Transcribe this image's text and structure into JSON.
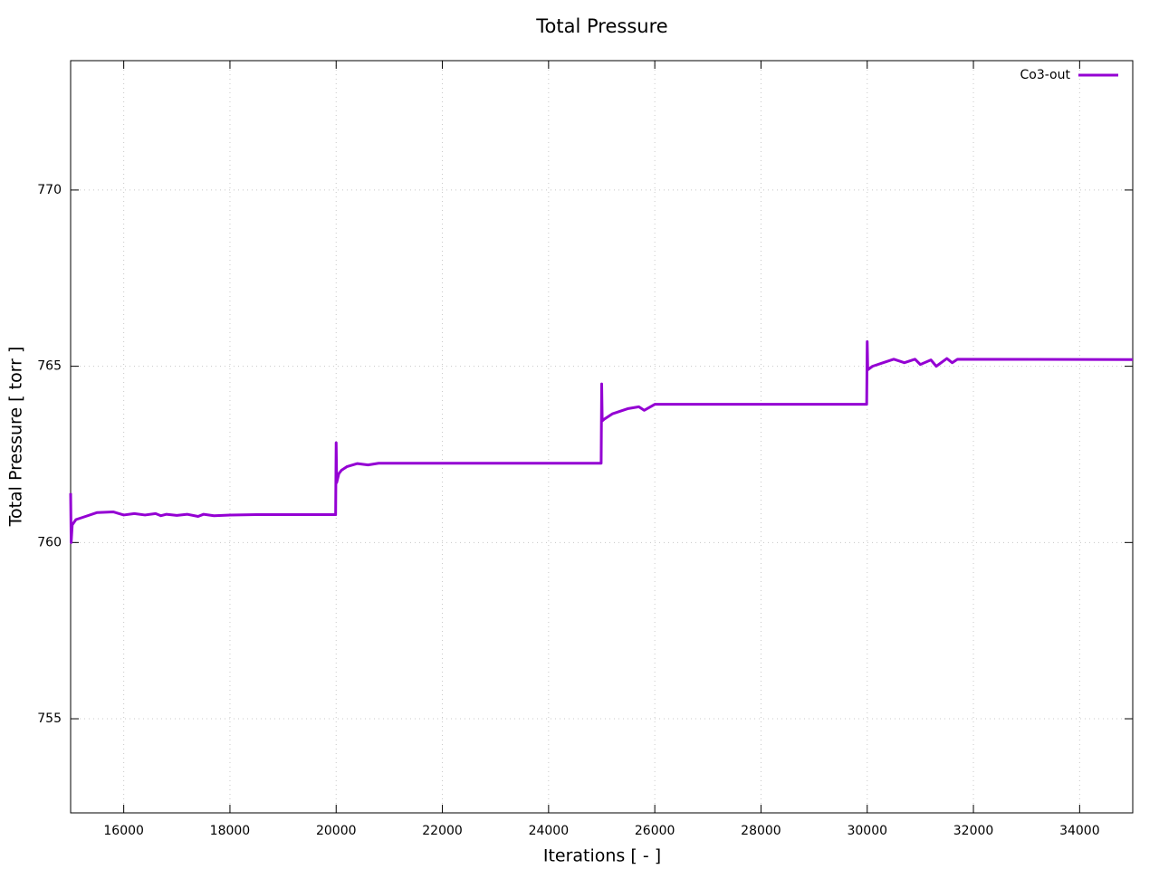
{
  "chart_data": {
    "type": "line",
    "title": "Total Pressure",
    "x_label": "Iterations [ - ]",
    "y_label": "Total Pressure [ torr ]",
    "x": [
      15000,
      15010,
      15030,
      15100,
      15300,
      15500,
      15800,
      16000,
      16200,
      16400,
      16600,
      16700,
      16800,
      17000,
      17200,
      17400,
      17500,
      17700,
      18000,
      18500,
      19990,
      20000,
      20010,
      20050,
      20100,
      20200,
      20400,
      20600,
      20800,
      24990,
      25000,
      25010,
      25050,
      25200,
      25500,
      25700,
      25800,
      26000,
      29990,
      30000,
      30010,
      30100,
      30300,
      30500,
      30700,
      30900,
      31000,
      31200,
      31300,
      31500,
      31600,
      31700,
      35000
    ],
    "series": [
      {
        "name": "Co3-out",
        "color": "#9400d3",
        "values": [
          761.4,
          760.0,
          760.5,
          760.65,
          760.75,
          760.85,
          760.87,
          760.78,
          760.82,
          760.78,
          760.82,
          760.76,
          760.8,
          760.77,
          760.8,
          760.74,
          760.8,
          760.76,
          760.78,
          760.79,
          760.79,
          762.83,
          761.7,
          761.95,
          762.05,
          762.15,
          762.24,
          762.2,
          762.25,
          762.25,
          764.5,
          763.45,
          763.5,
          763.65,
          763.8,
          763.85,
          763.75,
          763.92,
          763.92,
          765.7,
          764.9,
          765.0,
          765.1,
          765.2,
          765.1,
          765.2,
          765.05,
          765.18,
          765.0,
          765.22,
          765.1,
          765.2,
          765.19
        ]
      }
    ],
    "xlim": [
      15000,
      35000
    ],
    "ylim": [
      752.33,
      773.67
    ],
    "xticks": [
      16000,
      18000,
      20000,
      22000,
      24000,
      26000,
      28000,
      30000,
      32000,
      34000
    ],
    "yticks": [
      755,
      760,
      765,
      770
    ],
    "grid": true,
    "legend": "top-right"
  }
}
